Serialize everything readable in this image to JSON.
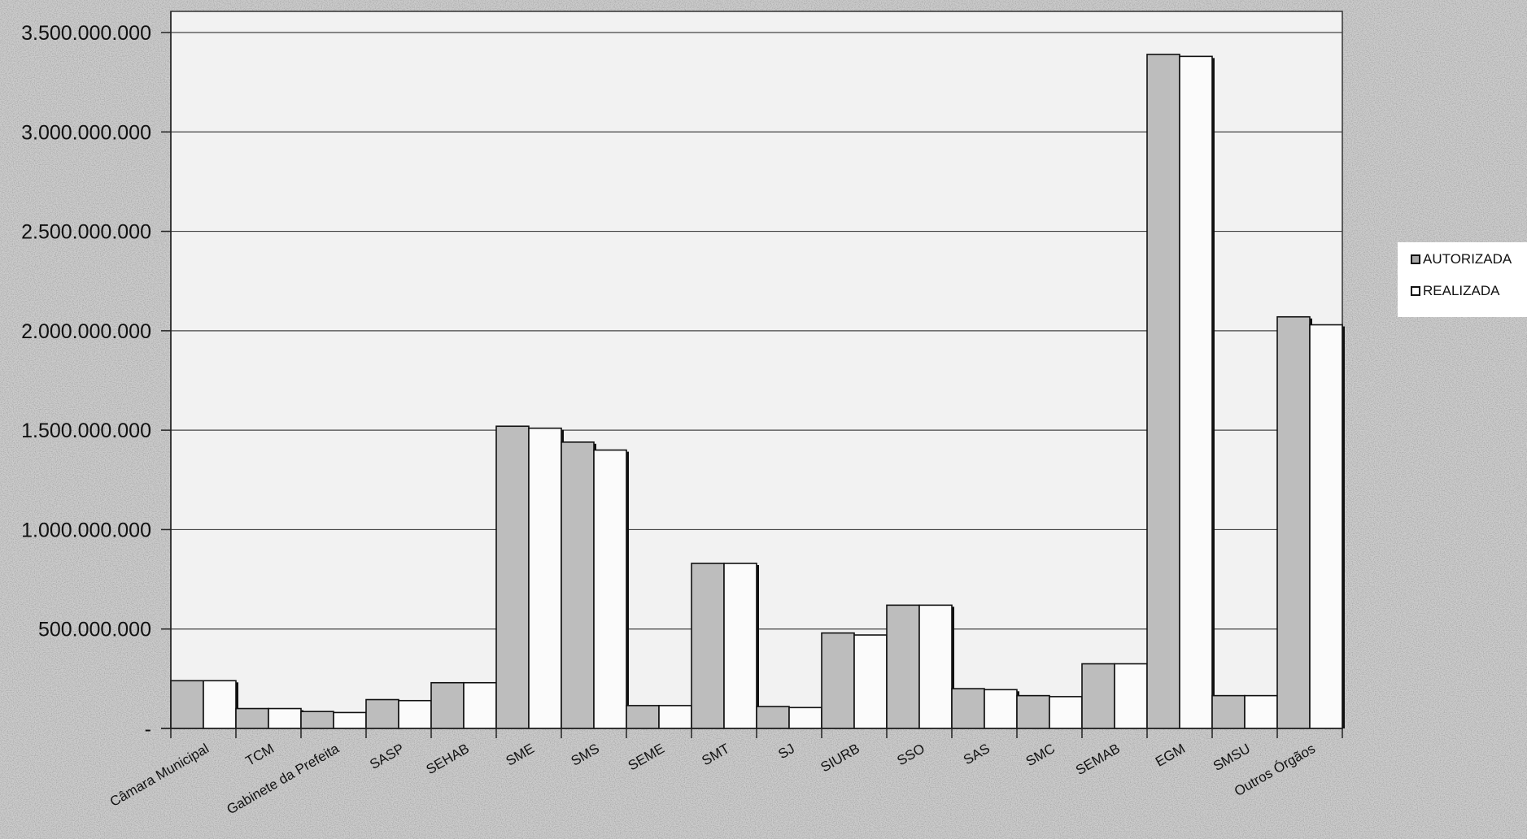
{
  "chart_data": {
    "type": "bar",
    "title": "",
    "xlabel": "",
    "ylabel": "",
    "ylim": [
      0,
      3500000000
    ],
    "yticks": [
      0,
      500000000,
      1000000000,
      1500000000,
      2000000000,
      2500000000,
      3000000000,
      3500000000
    ],
    "ytick_labels": [
      "-",
      "500.000.000",
      "1.000.000.000",
      "1.500.000.000",
      "2.000.000.000",
      "2.500.000.000",
      "3.000.000.000",
      "3.500.000.000"
    ],
    "grid": true,
    "legend_position": "right",
    "categories": [
      "Câmara Municipal",
      "TCM",
      "Gabinete da Prefeita",
      "SASP",
      "SEHAB",
      "SME",
      "SMS",
      "SEME",
      "SMT",
      "SJ",
      "SIURB",
      "SSO",
      "SAS",
      "SMC",
      "SEMAB",
      "EGM",
      "SMSU",
      "Outros Órgãos"
    ],
    "series": [
      {
        "name": "AUTORIZADA",
        "color": "#c4c4c4",
        "values": [
          240000000,
          100000000,
          85000000,
          145000000,
          230000000,
          1520000000,
          1440000000,
          115000000,
          830000000,
          110000000,
          480000000,
          620000000,
          200000000,
          165000000,
          325000000,
          3390000000,
          165000000,
          2070000000
        ]
      },
      {
        "name": "REALIZADA",
        "color": "#fafafa",
        "values": [
          240000000,
          100000000,
          80000000,
          140000000,
          230000000,
          1510000000,
          1400000000,
          115000000,
          830000000,
          105000000,
          470000000,
          620000000,
          195000000,
          160000000,
          325000000,
          3380000000,
          165000000,
          2030000000
        ]
      }
    ]
  }
}
